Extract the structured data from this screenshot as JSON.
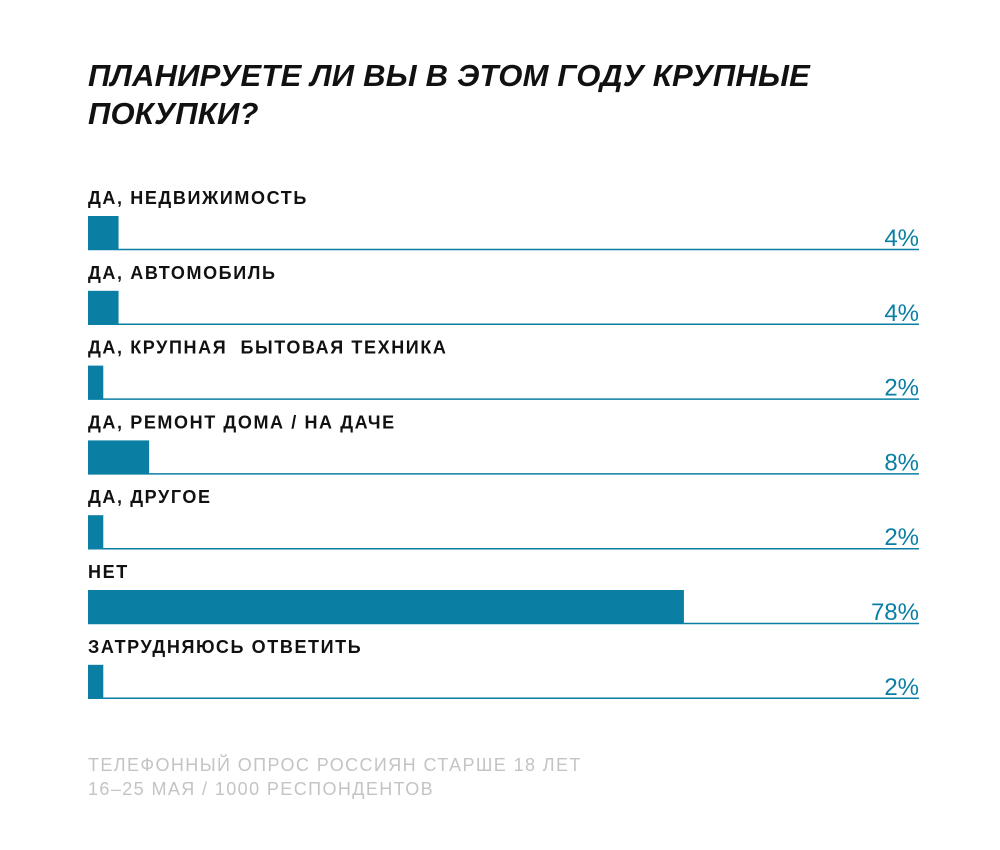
{
  "chart_data": {
    "type": "bar",
    "orientation": "horizontal",
    "title": "ПЛАНИРУЕТЕ ЛИ ВЫ В ЭТОМ ГОДУ КРУПНЫЕ ПОКУПКИ?",
    "categories": [
      "ДА, НЕДВИЖИМОСТЬ",
      "ДА, АВТОМОБИЛЬ",
      "ДА, КРУПНАЯ  БЫТОВАЯ ТЕХНИКА",
      "ДА, РЕМОНТ ДОМА / НА ДАЧЕ",
      "ДА, ДРУГОЕ",
      "НЕТ",
      "ЗАТРУДНЯЮСЬ ОТВЕТИТЬ"
    ],
    "values": [
      4,
      4,
      2,
      8,
      2,
      78,
      2
    ],
    "value_labels": [
      "4%",
      "4%",
      "2%",
      "8%",
      "2%",
      "78%",
      "2%"
    ],
    "unit": "%",
    "xlim": [
      0,
      100
    ],
    "grid": false,
    "legend": "none"
  },
  "footnote": {
    "line1": "ТЕЛЕФОННЫЙ  ОПРОС РОССИЯН  СТАРШЕ 18 ЛЕТ",
    "line2": "16–25 МАЯ / 1000 РЕСПОНДЕНТОВ"
  },
  "colors": {
    "bar": "#0a7fa3",
    "baseline": "#0a7fa3",
    "title": "#111111",
    "value_text": "#0a7fa3",
    "footnote_text": "#c4c4c4"
  }
}
